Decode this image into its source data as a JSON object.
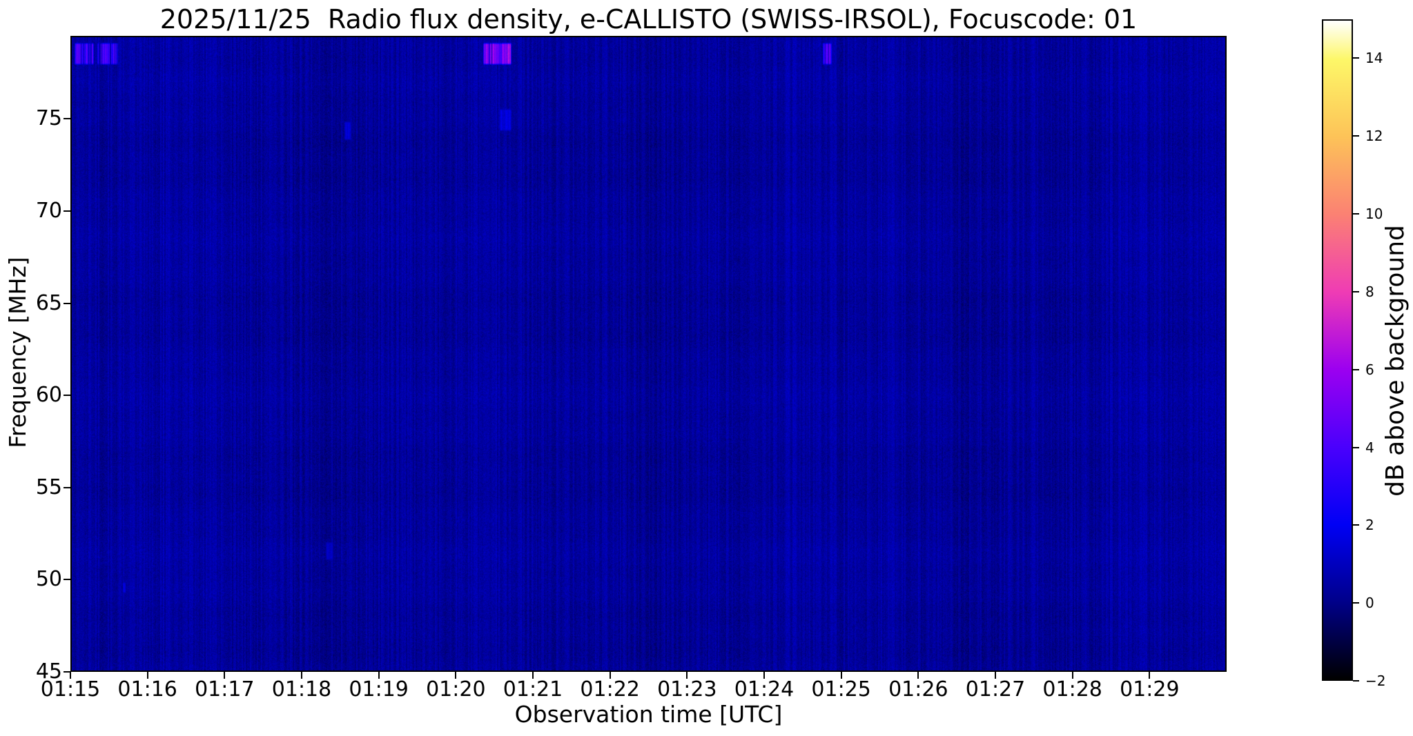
{
  "figure": {
    "kind": "spectrogram quicklook plot",
    "background_color": "#ffffff"
  },
  "chart_data": {
    "type": "heatmap",
    "title": "2025/11/25  Radio flux density, e-CALLISTO (SWISS-IRSOL), Focuscode: 01",
    "date": "2025/11/25",
    "instrument": "e-CALLISTO (SWISS-IRSOL)",
    "focuscode": "01",
    "xlabel": "Observation time [UTC]",
    "ylabel": "Frequency [MHz]",
    "x_start": "01:15:00",
    "x_end": "01:30:00",
    "x_ticks": [
      "01:15",
      "01:16",
      "01:17",
      "01:18",
      "01:19",
      "01:20",
      "01:21",
      "01:22",
      "01:23",
      "01:24",
      "01:25",
      "01:26",
      "01:27",
      "01:28",
      "01:29"
    ],
    "y_ticks": [
      {
        "label": "75",
        "value": 75
      },
      {
        "label": "70",
        "value": 70
      },
      {
        "label": "65",
        "value": 65
      },
      {
        "label": "60",
        "value": 60
      },
      {
        "label": "55",
        "value": 55
      },
      {
        "label": "50",
        "value": 50
      },
      {
        "label": "45",
        "value": 45
      }
    ],
    "ylim": [
      45,
      79.5
    ],
    "grid": false,
    "plot_bg_color": "#0a0a8f",
    "background_db": 0.35,
    "noise_db_sigma": 0.45,
    "colorbar": {
      "label": "dB above background",
      "vmin": -2,
      "vmax": 15,
      "ticks": [
        {
          "label": "14",
          "value": 14
        },
        {
          "label": "12",
          "value": 12
        },
        {
          "label": "10",
          "value": 10
        },
        {
          "label": "8",
          "value": 8
        },
        {
          "label": "6",
          "value": 6
        },
        {
          "label": "4",
          "value": 4
        },
        {
          "label": "2",
          "value": 2
        },
        {
          "label": "0",
          "value": 0
        },
        {
          "label": "−2",
          "value": -2
        }
      ],
      "stops": [
        {
          "f": 0.0,
          "color": "#000000"
        },
        {
          "f": 0.118,
          "color": "#00008a"
        },
        {
          "f": 0.235,
          "color": "#0000f5"
        },
        {
          "f": 0.353,
          "color": "#4a00fc"
        },
        {
          "f": 0.471,
          "color": "#9c00f0"
        },
        {
          "f": 0.588,
          "color": "#ef3cb4"
        },
        {
          "f": 0.706,
          "color": "#fb8173"
        },
        {
          "f": 0.824,
          "color": "#fdc358"
        },
        {
          "f": 0.941,
          "color": "#fdf768"
        },
        {
          "f": 1.0,
          "color": "#ffffff"
        }
      ]
    },
    "features": [
      {
        "desc": "RFI burst, first segment",
        "t_start": "01:15:02",
        "t_end": "01:15:17",
        "f_low": 78.0,
        "f_high": 79.2,
        "peak_db": 3.2
      },
      {
        "desc": "RFI burst, second segment",
        "t_start": "01:15:20",
        "t_end": "01:15:36",
        "f_low": 78.0,
        "f_high": 79.2,
        "peak_db": 3.2
      },
      {
        "desc": "Bright RFI burst",
        "t_start": "01:20:21",
        "t_end": "01:20:43",
        "f_low": 78.0,
        "f_high": 79.2,
        "peak_db": 4.6
      },
      {
        "desc": "Faint striations",
        "t_start": "01:20:34",
        "t_end": "01:20:43",
        "f_low": 74.4,
        "f_high": 75.6,
        "peak_db": 1.3
      },
      {
        "desc": "Narrow RFI burst",
        "t_start": "01:24:46",
        "t_end": "01:24:53",
        "f_low": 78.0,
        "f_high": 79.2,
        "peak_db": 3.8
      },
      {
        "desc": "Faint blob",
        "t_start": "01:18:33",
        "t_end": "01:18:38",
        "f_low": 73.9,
        "f_high": 74.9,
        "peak_db": 0.9
      },
      {
        "desc": "Point burst",
        "t_start": "01:15:40",
        "t_end": "01:15:42",
        "f_low": 49.2,
        "f_high": 49.8,
        "peak_db": 1.6
      },
      {
        "desc": "Very faint blob",
        "t_start": "01:18:18",
        "t_end": "01:18:24",
        "f_low": 51.0,
        "f_high": 52.0,
        "peak_db": 0.7
      }
    ]
  }
}
